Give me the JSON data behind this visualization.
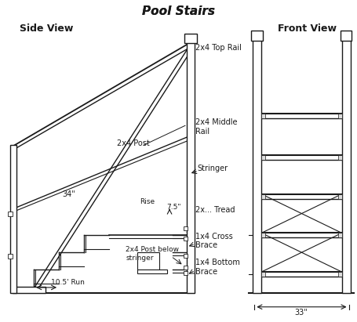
{
  "title": "Pool Stairs",
  "bg_color": "#ffffff",
  "line_color": "#1a1a1a",
  "title_fs": 11,
  "label_fs": 7,
  "small_fs": 6.5,
  "side_view_label": "Side View",
  "front_view_label": "Front View",
  "ann": {
    "top_rail": "2x4 Top Rail",
    "middle_rail": "2x4 Middle\nRail",
    "post": "2x4 Post",
    "stringer": "Stringer",
    "tread": "2x... Tread",
    "cross_brace": "1x4 Cross\nBrace",
    "bottom_brace": "1x4 Bottom\nBrace",
    "post_below": "2x4 Post below\nstringer",
    "rise_label": "Rise",
    "rise_val": "7.5\"",
    "run_val": "10.5' Run",
    "dim_34": "34\"",
    "dim_33": "33\""
  }
}
